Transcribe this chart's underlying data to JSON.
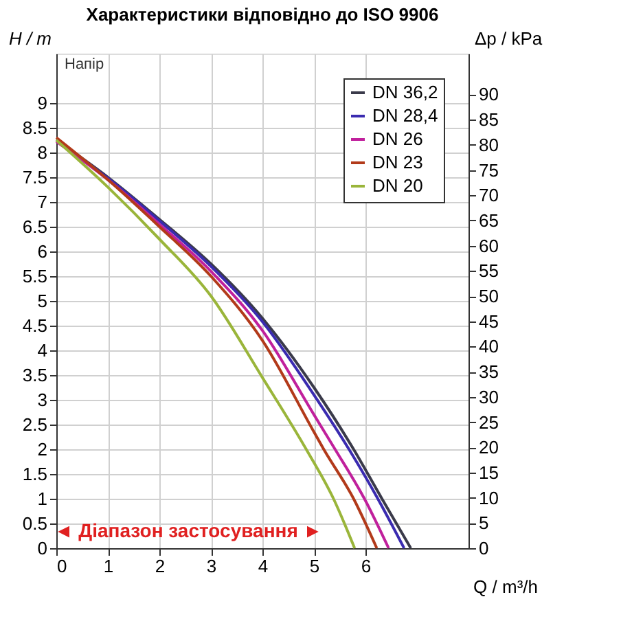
{
  "chart_data": {
    "type": "line",
    "title": "Характеристики відповідно до ISO 9906",
    "xlabel": "Q / m³/h",
    "ylabel": "H / m",
    "y2label": "Δp / kPa",
    "annotations": [
      "Напір",
      "◄ Діапазон застосування ►"
    ],
    "series": [
      {
        "name": "DN 36,2",
        "color": "#3a3a4a",
        "x": [
          0,
          1,
          2,
          3,
          4,
          5,
          5.77,
          6.32,
          6.88
        ],
        "values": [
          8.25,
          7.5,
          6.65,
          5.75,
          4.65,
          3.25,
          2,
          1,
          0
        ]
      },
      {
        "name": "DN 28,4",
        "color": "#3a2bb0",
        "x": [
          0,
          1,
          2,
          3,
          4,
          5,
          5.68,
          6.24,
          6.75
        ],
        "values": [
          8.25,
          7.48,
          6.62,
          5.7,
          4.58,
          3.1,
          2,
          1,
          0
        ]
      },
      {
        "name": "DN 26",
        "color": "#c0209c",
        "x": [
          0,
          1,
          2,
          3,
          4,
          5,
          5.41,
          5.98,
          6.45
        ],
        "values": [
          8.22,
          7.45,
          6.55,
          5.6,
          4.4,
          2.7,
          2,
          1,
          0
        ]
      },
      {
        "name": "DN 23",
        "color": "#b23a1a",
        "x": [
          0,
          1,
          2,
          3,
          4,
          5,
          5.19,
          5.77,
          6.22
        ],
        "values": [
          8.3,
          7.45,
          6.5,
          5.5,
          4.2,
          2.35,
          2,
          1,
          0
        ]
      },
      {
        "name": "DN 20",
        "color": "#9ab53a",
        "x": [
          0,
          1,
          2,
          3,
          4,
          4.85,
          5.38,
          5.79
        ],
        "values": [
          8.25,
          7.3,
          6.25,
          5.1,
          3.45,
          2,
          1,
          0
        ]
      }
    ],
    "xlim": [
      0,
      8
    ],
    "xticks": [
      0,
      1,
      2,
      3,
      4,
      5,
      6
    ],
    "ylim": [
      0,
      10
    ],
    "yticks": [
      0,
      0.5,
      1,
      1.5,
      2,
      2.5,
      3,
      3.5,
      4,
      4.5,
      5,
      5.5,
      6,
      6.5,
      7,
      7.5,
      8,
      8.5,
      9
    ],
    "y2lim": [
      0,
      98.1
    ],
    "y2ticks": [
      0,
      5,
      10,
      15,
      20,
      25,
      30,
      35,
      40,
      45,
      50,
      55,
      60,
      65,
      70,
      75,
      80,
      85,
      90
    ],
    "grid": true,
    "legend": "top right",
    "marker": "none",
    "line_style": "solid"
  }
}
